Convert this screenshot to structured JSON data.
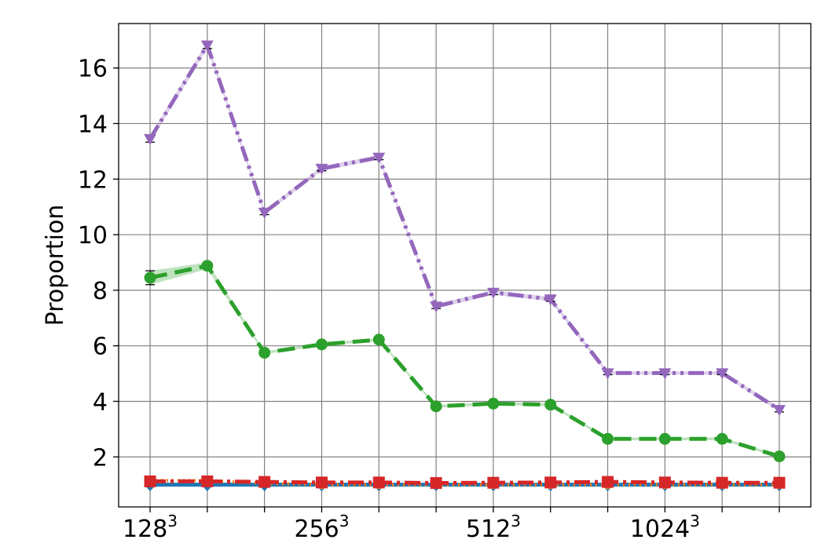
{
  "chart_data": {
    "type": "line",
    "title": "",
    "xlabel": "",
    "ylabel": "Proportion",
    "xlim": [
      -0.55,
      11.55
    ],
    "ylim": [
      0.2,
      17.6
    ],
    "grid": true,
    "yticks": [
      2,
      4,
      6,
      8,
      10,
      12,
      14,
      16
    ],
    "ytick_labels": [
      "2",
      "4",
      "6",
      "8",
      "10",
      "12",
      "14",
      "16"
    ],
    "xticks": [
      0,
      1,
      2,
      3,
      4,
      5,
      6,
      7,
      8,
      9,
      10,
      11
    ],
    "xtick_labels": [
      {
        "pos": 0,
        "base": "128",
        "exp": "3"
      },
      {
        "pos": 3,
        "base": "256",
        "exp": "3"
      },
      {
        "pos": 6,
        "base": "512",
        "exp": "3"
      },
      {
        "pos": 9,
        "base": "1024",
        "exp": "3"
      }
    ],
    "series": [
      {
        "color": "#1f77b4",
        "dash": "",
        "width": 5,
        "marker": "diamond",
        "values": [
          1.0,
          1.0,
          1.0,
          1.0,
          1.0,
          1.0,
          1.0,
          1.0,
          1.0,
          1.0,
          1.0,
          1.0
        ]
      },
      {
        "color": "#ff7f0e",
        "dash": "2,5",
        "width": 4,
        "marker": "circle-small",
        "values": [
          1.15,
          1.15,
          1.05,
          1.0,
          1.0,
          1.0,
          1.0,
          1.0,
          1.0,
          1.0,
          1.0,
          1.0
        ]
      },
      {
        "color": "#2ca02c",
        "dash": "22,10",
        "width": 5,
        "marker": "circle",
        "values": [
          8.45,
          8.88,
          5.75,
          6.05,
          6.22,
          3.82,
          3.92,
          3.88,
          2.65,
          2.65,
          2.65,
          2.02
        ],
        "err": [
          0.25,
          0.12,
          0.05,
          0.05,
          0.05,
          0.05,
          0.05,
          0.05,
          0.05,
          0.05,
          0.05,
          0.05
        ]
      },
      {
        "color": "#d62728",
        "dash": "20,6,4,6",
        "width": 5,
        "marker": "square",
        "values": [
          1.12,
          1.12,
          1.1,
          1.08,
          1.08,
          1.06,
          1.07,
          1.08,
          1.1,
          1.08,
          1.07,
          1.07
        ]
      },
      {
        "color": "#9467bd",
        "dash": "20,6,4,6,4,6",
        "width": 5,
        "marker": "triangle-down",
        "values": [
          13.45,
          16.82,
          10.8,
          12.38,
          12.78,
          7.42,
          7.92,
          7.68,
          5.02,
          5.02,
          5.02,
          3.7
        ],
        "err": [
          0.12,
          0.12,
          0.08,
          0.08,
          0.08,
          0.08,
          0.08,
          0.08,
          0.06,
          0.06,
          0.06,
          0.08
        ]
      }
    ]
  }
}
